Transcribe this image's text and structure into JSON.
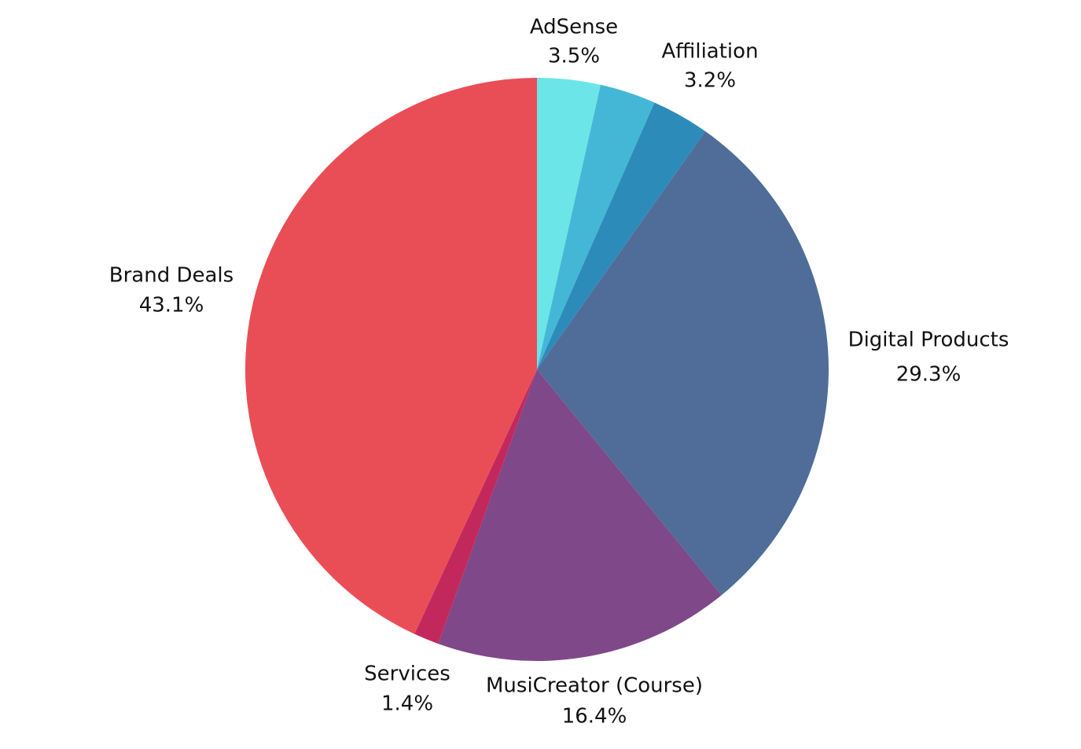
{
  "chart_data": {
    "type": "pie",
    "categories": [
      "AdSense",
      null,
      "Affiliation",
      "Digital Products",
      "MusiCreator (Course)",
      "Services",
      "Brand Deals"
    ],
    "values": [
      3.5,
      3.1,
      3.2,
      29.3,
      16.4,
      1.4,
      43.1
    ],
    "value_labels": [
      "3.5%",
      null,
      "3.2%",
      "29.3%",
      "16.4%",
      "1.4%",
      "43.1%"
    ],
    "colors": [
      "#6ce5e8",
      "#45b7d6",
      "#2d8bba",
      "#4f6d98",
      "#7e4889",
      "#c3285d",
      "#e94e57"
    ]
  }
}
